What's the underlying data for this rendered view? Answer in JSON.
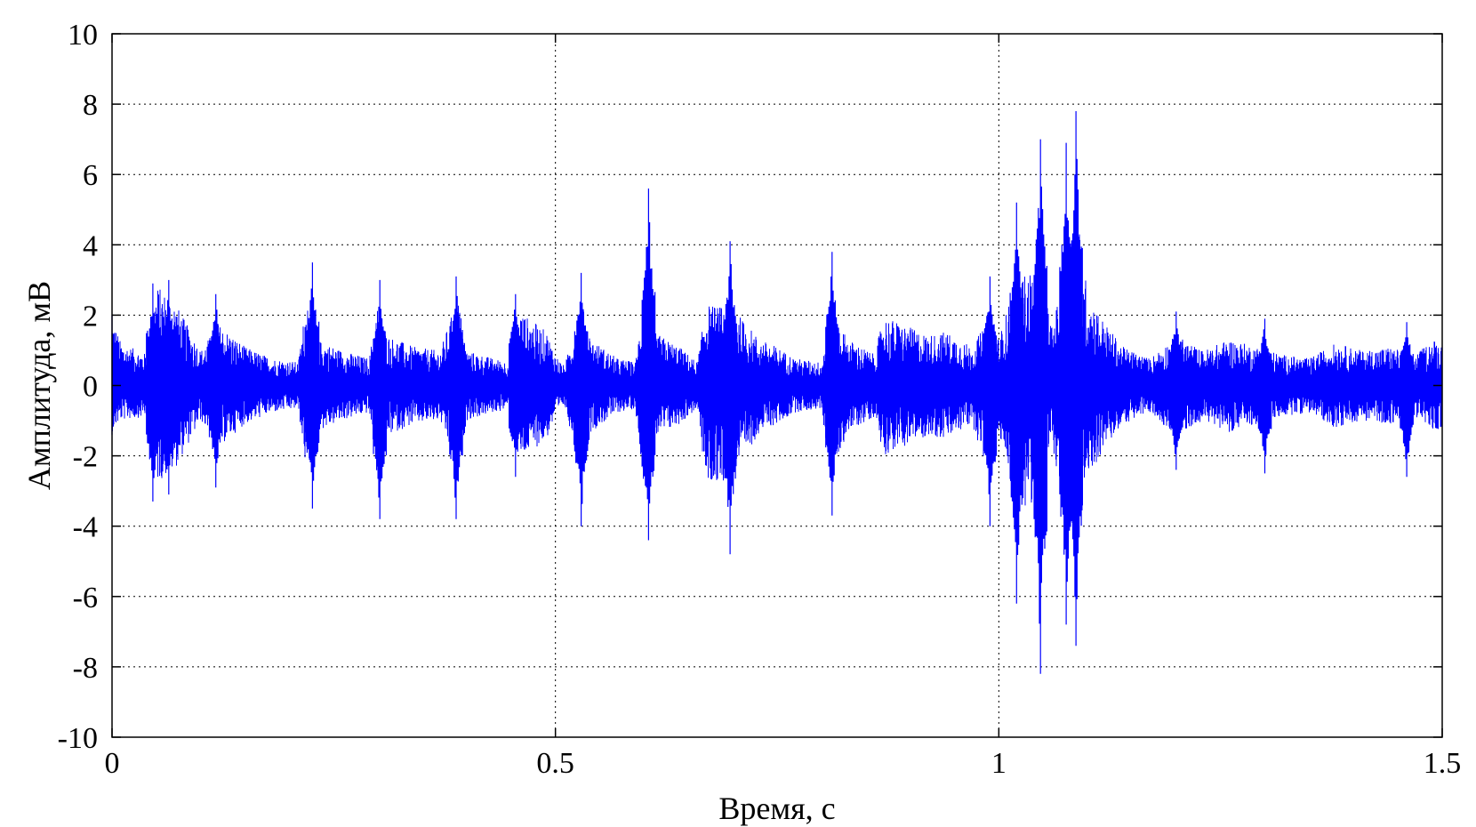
{
  "chart_data": {
    "type": "line",
    "xlabel": "Время, с",
    "ylabel": "Амплитуда, мВ",
    "xlim": [
      0,
      1.5
    ],
    "ylim": [
      -10,
      10
    ],
    "grid": true,
    "x_ticks": [
      "0",
      "0.5",
      "1",
      "1.5"
    ],
    "y_ticks": [
      "10",
      "8",
      "6",
      "4",
      "2",
      "0",
      "-2",
      "-4",
      "-6",
      "-8",
      "-10"
    ],
    "series": [
      {
        "color": "#0000ff",
        "style": "dense oscillating signal",
        "envelope": {
          "t": [
            0,
            0.01,
            0.04,
            0.05,
            0.07,
            0.1,
            0.12,
            0.15,
            0.18,
            0.21,
            0.22,
            0.23,
            0.26,
            0.29,
            0.3,
            0.31,
            0.34,
            0.37,
            0.39,
            0.4,
            0.43,
            0.45,
            0.46,
            0.49,
            0.5,
            0.51,
            0.53,
            0.54,
            0.57,
            0.59,
            0.6,
            0.61,
            0.64,
            0.66,
            0.67,
            0.7,
            0.73,
            0.75,
            0.77,
            0.8,
            0.81,
            0.83,
            0.86,
            0.87,
            0.89,
            0.92,
            0.94,
            0.97,
            0.99,
            1.0,
            1.02,
            1.04,
            1.05,
            1.06,
            1.08,
            1.09,
            1.1,
            1.12,
            1.14,
            1.17,
            1.2,
            1.23,
            1.26,
            1.29,
            1.32,
            1.35,
            1.38,
            1.41,
            1.44,
            1.47,
            1.49,
            1.5
          ],
          "upper": [
            1.8,
            1.1,
            0.8,
            2.6,
            2.2,
            0.9,
            1.6,
            1.0,
            0.7,
            0.6,
            2.4,
            1.2,
            0.9,
            0.7,
            2.2,
            1.3,
            1.0,
            0.9,
            2.3,
            0.9,
            0.7,
            0.6,
            1.9,
            1.4,
            0.8,
            0.5,
            2.1,
            1.2,
            0.7,
            0.6,
            2.3,
            1.4,
            1.0,
            0.6,
            2.1,
            2.0,
            1.2,
            1.0,
            0.7,
            0.6,
            2.0,
            1.2,
            0.8,
            1.8,
            1.6,
            1.3,
            1.4,
            1.0,
            1.8,
            1.2,
            2.8,
            3.0,
            2.6,
            1.5,
            3.6,
            4.2,
            2.4,
            1.6,
            1.0,
            0.7,
            1.3,
            0.9,
            1.2,
            1.0,
            0.8,
            0.7,
            1.1,
            0.9,
            1.0,
            0.8,
            1.2,
            1.1
          ],
          "lower": [
            -1.2,
            -0.9,
            -0.8,
            -2.5,
            -2.2,
            -0.9,
            -1.6,
            -1.0,
            -0.7,
            -0.6,
            -2.4,
            -1.2,
            -0.9,
            -0.7,
            -2.5,
            -1.3,
            -1.0,
            -0.9,
            -2.3,
            -0.9,
            -0.7,
            -0.6,
            -1.9,
            -1.4,
            -0.8,
            -0.5,
            -2.4,
            -1.2,
            -0.7,
            -0.6,
            -2.6,
            -1.4,
            -1.0,
            -0.6,
            -2.6,
            -2.4,
            -1.2,
            -1.0,
            -0.7,
            -0.6,
            -2.3,
            -1.2,
            -0.8,
            -1.8,
            -1.6,
            -1.3,
            -1.4,
            -1.0,
            -2.4,
            -1.2,
            -3.2,
            -3.0,
            -2.6,
            -1.5,
            -4.0,
            -4.2,
            -2.4,
            -1.6,
            -1.0,
            -0.7,
            -1.3,
            -0.9,
            -1.2,
            -1.0,
            -0.8,
            -0.7,
            -1.1,
            -0.9,
            -1.0,
            -0.8,
            -1.2,
            -1.1
          ]
        },
        "spikes": [
          {
            "t": 0.0,
            "max": 2.0,
            "min": -1.4
          },
          {
            "t": 0.046,
            "max": 2.9,
            "min": -3.3
          },
          {
            "t": 0.064,
            "max": 3.0,
            "min": -3.1
          },
          {
            "t": 0.117,
            "max": 2.6,
            "min": -2.9
          },
          {
            "t": 0.226,
            "max": 3.5,
            "min": -3.5
          },
          {
            "t": 0.302,
            "max": 3.0,
            "min": -3.8
          },
          {
            "t": 0.388,
            "max": 3.1,
            "min": -3.8
          },
          {
            "t": 0.455,
            "max": 2.6,
            "min": -2.6
          },
          {
            "t": 0.529,
            "max": 3.2,
            "min": -4.0
          },
          {
            "t": 0.605,
            "max": 5.6,
            "min": -4.4
          },
          {
            "t": 0.697,
            "max": 4.1,
            "min": -4.8
          },
          {
            "t": 0.812,
            "max": 3.8,
            "min": -3.7
          },
          {
            "t": 0.99,
            "max": 3.1,
            "min": -4.0
          },
          {
            "t": 1.02,
            "max": 5.2,
            "min": -6.2
          },
          {
            "t": 1.047,
            "max": 7.0,
            "min": -8.2
          },
          {
            "t": 1.076,
            "max": 6.9,
            "min": -6.8
          },
          {
            "t": 1.087,
            "max": 7.8,
            "min": -7.4
          },
          {
            "t": 1.2,
            "max": 2.1,
            "min": -2.4
          },
          {
            "t": 1.3,
            "max": 1.9,
            "min": -2.5
          },
          {
            "t": 1.46,
            "max": 1.8,
            "min": -2.6
          }
        ]
      }
    ]
  }
}
